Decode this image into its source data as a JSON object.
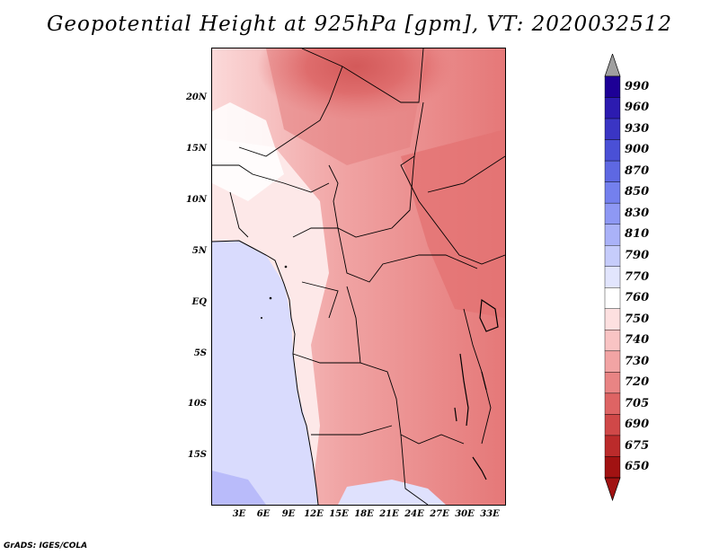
{
  "title": "Geopotential Height at 925hPa [gpm], VT: 2020032512",
  "lat_labels": [
    "20N",
    "15N",
    "10N",
    "5N",
    "EQ",
    "5S",
    "10S",
    "15S"
  ],
  "lon_labels": [
    "3E",
    "6E",
    "9E",
    "12E",
    "15E",
    "18E",
    "21E",
    "24E",
    "27E",
    "30E",
    "33E"
  ],
  "colorbar": {
    "levels": [
      "990",
      "960",
      "930",
      "900",
      "870",
      "850",
      "830",
      "810",
      "790",
      "770",
      "760",
      "750",
      "740",
      "730",
      "720",
      "705",
      "690",
      "675",
      "650"
    ],
    "colors": [
      "#1d0096",
      "#2c1bb0",
      "#3a35c4",
      "#4a50d6",
      "#5e68e2",
      "#7480ee",
      "#8e98f4",
      "#aab2f8",
      "#c6ccfb",
      "#e2e5fd",
      "#ffffff",
      "#fde0e0",
      "#f9c4c4",
      "#f2a4a4",
      "#e98484",
      "#de6464",
      "#d04848",
      "#bb2b2b",
      "#a11212"
    ]
  },
  "credit": "GrADS: IGES/COLA"
}
